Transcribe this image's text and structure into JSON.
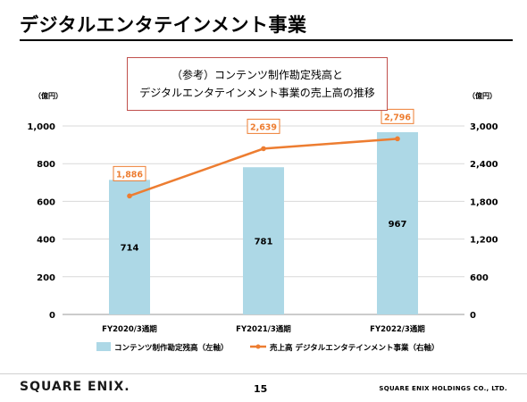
{
  "slide": {
    "title": "デジタルエンタテインメント事業",
    "page_number": "15",
    "logo_text": "SQUARE ENIX.",
    "company": "SQUARE ENIX HOLDINGS CO., LTD."
  },
  "ref_box": {
    "line1": "（参考）コンテンツ制作勘定残高と",
    "line2": "デジタルエンタテインメント事業の売上高の推移"
  },
  "chart_data": {
    "type": "bar",
    "categories": [
      "FY2020/3通期",
      "FY2021/3通期",
      "FY2022/3通期"
    ],
    "series": [
      {
        "name": "コンテンツ制作勘定残高（左軸）",
        "type": "bar",
        "axis": "left",
        "values": [
          714,
          781,
          967
        ],
        "labels": [
          "714",
          "781",
          "967"
        ],
        "color": "#add8e6"
      },
      {
        "name": "売上高 デジタルエンタテインメント事業（右軸）",
        "type": "line",
        "axis": "right",
        "values": [
          1886,
          2639,
          2796
        ],
        "labels": [
          "1,886",
          "2,639",
          "2,796"
        ],
        "color": "#ed7d31"
      }
    ],
    "ylabel_left": "（億円）",
    "ylabel_right": "（億円）",
    "ylim_left": [
      0,
      1000
    ],
    "ylim_right": [
      0,
      3000
    ],
    "yticks_left": [
      "0",
      "200",
      "400",
      "600",
      "800",
      "1,000"
    ],
    "yticks_right": [
      "0",
      "600",
      "1,200",
      "1,800",
      "2,400",
      "3,000"
    ],
    "grid": true,
    "legend_position": "bottom"
  }
}
